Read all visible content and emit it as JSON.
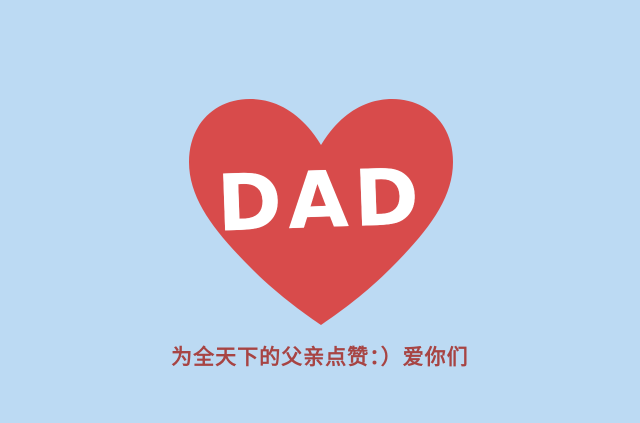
{
  "colors": {
    "background": "#bcdaf3",
    "heart": "#d84b4b",
    "heart_text": "#ffffff",
    "caption": "#a74443"
  },
  "heart": {
    "label": "DAD"
  },
  "caption": {
    "text": "为全天下的父亲点赞：）爱你们"
  }
}
